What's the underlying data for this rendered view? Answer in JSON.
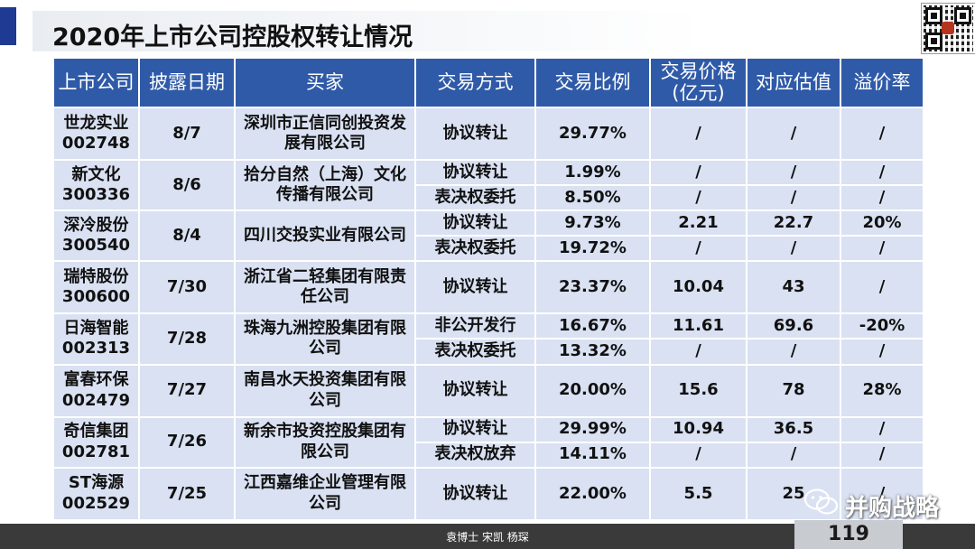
{
  "title": "2020年上市公司控股权转让情况",
  "columns": [
    "上市公司",
    "披露日期",
    "买家",
    "交易方式",
    "交易比例",
    "交易价格\n(亿元)",
    "对应估值",
    "溢价率"
  ],
  "rows": [
    {
      "name": "世龙实业",
      "code": "002748",
      "date": "8/7",
      "buyer": "深圳市正信同创投资发展有限公司",
      "deals": [
        {
          "method": "协议转让",
          "ratio": "29.77%",
          "price": "/",
          "valuation": "/",
          "premium": "/"
        }
      ]
    },
    {
      "name": "新文化",
      "code": "300336",
      "date": "8/6",
      "buyer": "拾分自然（上海）文化传播有限公司",
      "deals": [
        {
          "method": "协议转让",
          "ratio": "1.99%",
          "price": "/",
          "valuation": "/",
          "premium": "/"
        },
        {
          "method": "表决权委托",
          "ratio": "8.50%",
          "price": "/",
          "valuation": "/",
          "premium": "/"
        }
      ]
    },
    {
      "name": "深冷股份",
      "code": "300540",
      "date": "8/4",
      "buyer": "四川交投实业有限公司",
      "deals": [
        {
          "method": "协议转让",
          "ratio": "9.73%",
          "price": "2.21",
          "valuation": "22.7",
          "premium": "20%"
        },
        {
          "method": "表决权委托",
          "ratio": "19.72%",
          "price": "/",
          "valuation": "/",
          "premium": "/"
        }
      ]
    },
    {
      "name": "瑞特股份",
      "code": "300600",
      "date": "7/30",
      "buyer": "浙江省二轻集团有限责任公司",
      "deals": [
        {
          "method": "协议转让",
          "ratio": "23.37%",
          "price": "10.04",
          "valuation": "43",
          "premium": "/"
        }
      ]
    },
    {
      "name": "日海智能",
      "code": "002313",
      "date": "7/28",
      "buyer": "珠海九洲控股集团有限公司",
      "deals": [
        {
          "method": "非公开发行",
          "ratio": "16.67%",
          "price": "11.61",
          "valuation": "69.6",
          "premium": "-20%"
        },
        {
          "method": "表决权委托",
          "ratio": "13.32%",
          "price": "/",
          "valuation": "/",
          "premium": "/"
        }
      ]
    },
    {
      "name": "富春环保",
      "code": "002479",
      "date": "7/27",
      "buyer": "南昌水天投资集团有限公司",
      "deals": [
        {
          "method": "协议转让",
          "ratio": "20.00%",
          "price": "15.6",
          "valuation": "78",
          "premium": "28%"
        }
      ]
    },
    {
      "name": "奇信集团",
      "code": "002781",
      "date": "7/26",
      "buyer": "新余市投资控股集团有限公司",
      "deals": [
        {
          "method": "协议转让",
          "ratio": "29.99%",
          "price": "10.94",
          "valuation": "36.5",
          "premium": "/"
        },
        {
          "method": "表决权放弃",
          "ratio": "14.11%",
          "price": "/",
          "valuation": "/",
          "premium": "/"
        }
      ]
    },
    {
      "name": "ST海源",
      "code": "002529",
      "date": "7/25",
      "buyer": "江西嘉维企业管理有限公司",
      "deals": [
        {
          "method": "协议转让",
          "ratio": "22.00%",
          "price": "5.5",
          "valuation": "25",
          "premium": "/"
        }
      ]
    }
  ],
  "footer": {
    "authors": "袁博士 宋凯 杨琛",
    "page_number": "119"
  },
  "watermark": {
    "text": "并购战略",
    "icon": "wechat-icon"
  },
  "colors": {
    "header_bg": "#2f5aa8",
    "cell_bg": "#d9e1f2",
    "accent_bar": "#1f3a93",
    "footer_bg": "#3a3a3a"
  }
}
